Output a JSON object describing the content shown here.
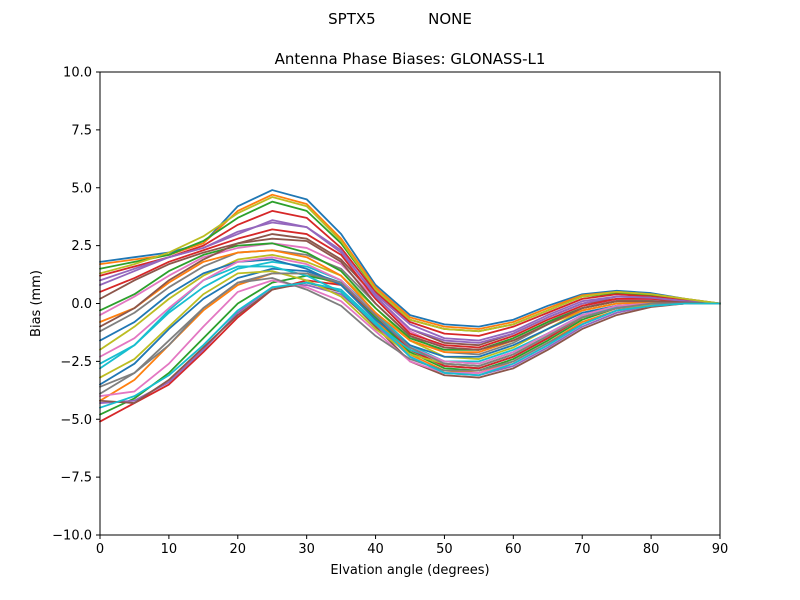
{
  "chart_data": {
    "type": "line",
    "suptitle": "SPTX5           NONE",
    "title": "Antenna Phase Biases: GLONASS-L1",
    "xlabel": "Elvation angle (degrees)",
    "ylabel": "Bias (mm)",
    "xlim": [
      0,
      90
    ],
    "ylim": [
      -10,
      10
    ],
    "xticks": [
      0,
      10,
      20,
      30,
      40,
      50,
      60,
      70,
      80,
      90
    ],
    "yticks": [
      -10.0,
      -7.5,
      -5.0,
      -2.5,
      0.0,
      2.5,
      5.0,
      7.5,
      10.0
    ],
    "xtick_labels": [
      "0",
      "10",
      "20",
      "30",
      "40",
      "50",
      "60",
      "70",
      "80",
      "90"
    ],
    "ytick_labels": [
      "−10.0",
      "−7.5",
      "−5.0",
      "−2.5",
      "0.0",
      "2.5",
      "5.0",
      "7.5",
      "10.0"
    ],
    "grid": false,
    "legend": false,
    "colors": [
      "#1f77b4",
      "#ff7f0e",
      "#2ca02c",
      "#d62728",
      "#9467bd",
      "#8c564b",
      "#e377c2",
      "#7f7f7f",
      "#bcbd22",
      "#17becf"
    ],
    "x": [
      0,
      5,
      10,
      15,
      20,
      25,
      30,
      35,
      40,
      45,
      50,
      55,
      60,
      65,
      70,
      75,
      80,
      85,
      90
    ],
    "series": [
      {
        "values": [
          1.8,
          2.0,
          2.2,
          2.6,
          4.2,
          4.9,
          4.5,
          3.0,
          0.8,
          -0.5,
          -0.9,
          -1.0,
          -0.7,
          -0.1,
          0.4,
          0.55,
          0.45,
          0.2,
          0.0
        ]
      },
      {
        "values": [
          1.7,
          1.9,
          2.1,
          2.6,
          4.0,
          4.7,
          4.3,
          2.8,
          0.7,
          -0.6,
          -1.0,
          -1.1,
          -0.8,
          -0.2,
          0.35,
          0.5,
          0.4,
          0.2,
          0.0
        ]
      },
      {
        "values": [
          1.5,
          1.8,
          2.1,
          2.7,
          3.7,
          4.4,
          4.0,
          2.6,
          0.6,
          -0.7,
          -1.1,
          -1.2,
          -0.9,
          -0.3,
          0.3,
          0.45,
          0.35,
          0.15,
          0.0
        ]
      },
      {
        "values": [
          1.2,
          1.6,
          2.0,
          2.5,
          3.4,
          4.0,
          3.7,
          2.4,
          0.5,
          -0.8,
          -1.3,
          -1.4,
          -1.0,
          -0.4,
          0.2,
          0.4,
          0.3,
          0.15,
          0.0
        ]
      },
      {
        "values": [
          0.8,
          1.4,
          2.0,
          2.4,
          3.0,
          3.6,
          3.3,
          2.2,
          0.4,
          -0.9,
          -1.5,
          -1.6,
          -1.2,
          -0.5,
          0.1,
          0.3,
          0.25,
          0.1,
          0.0
        ]
      },
      {
        "values": [
          0.2,
          1.0,
          1.7,
          2.2,
          2.6,
          3.0,
          2.8,
          1.9,
          0.3,
          -1.1,
          -1.7,
          -1.8,
          -1.3,
          -0.6,
          0.0,
          0.2,
          0.2,
          0.1,
          0.0
        ]
      },
      {
        "values": [
          -0.5,
          0.3,
          1.2,
          2.0,
          2.4,
          2.6,
          2.4,
          1.7,
          0.2,
          -1.2,
          -1.9,
          -2.0,
          -1.5,
          -0.8,
          -0.1,
          0.15,
          0.15,
          0.05,
          0.0
        ]
      },
      {
        "values": [
          -1.2,
          -0.4,
          0.7,
          1.6,
          2.2,
          2.3,
          2.1,
          1.5,
          0.0,
          -1.4,
          -2.1,
          -2.2,
          -1.7,
          -0.9,
          -0.2,
          0.1,
          0.1,
          0.05,
          0.0
        ]
      },
      {
        "values": [
          -2.0,
          -1.0,
          0.2,
          1.2,
          1.9,
          2.1,
          1.8,
          1.2,
          -0.2,
          -1.6,
          -2.3,
          -2.4,
          -1.9,
          -1.1,
          -0.3,
          0.0,
          0.05,
          0.0,
          0.0
        ]
      },
      {
        "values": [
          -2.8,
          -1.8,
          -0.4,
          0.7,
          1.5,
          1.8,
          1.6,
          1.0,
          -0.4,
          -1.8,
          -2.5,
          -2.6,
          -2.1,
          -1.3,
          -0.5,
          -0.1,
          0.0,
          0.0,
          0.0
        ]
      },
      {
        "values": [
          -3.5,
          -2.6,
          -1.1,
          0.2,
          1.1,
          1.5,
          1.4,
          0.9,
          -0.6,
          -2.0,
          -2.7,
          -2.8,
          -2.3,
          -1.5,
          -0.6,
          -0.2,
          -0.05,
          0.0,
          0.0
        ]
      },
      {
        "values": [
          -4.2,
          -3.3,
          -1.8,
          -0.3,
          0.8,
          1.3,
          1.3,
          0.8,
          -0.7,
          -2.2,
          -2.9,
          -3.0,
          -2.5,
          -1.7,
          -0.8,
          -0.3,
          -0.1,
          0.0,
          0.0
        ]
      },
      {
        "values": [
          -4.8,
          -4.1,
          -3.0,
          -1.5,
          0.0,
          0.9,
          1.2,
          0.9,
          -0.6,
          -2.1,
          -2.8,
          -2.9,
          -2.4,
          -1.6,
          -0.7,
          -0.2,
          -0.05,
          0.0,
          0.0
        ]
      },
      {
        "values": [
          -5.1,
          -4.3,
          -3.5,
          -2.1,
          -0.6,
          0.6,
          1.0,
          0.8,
          -0.5,
          -2.0,
          -2.7,
          -2.8,
          -2.3,
          -1.5,
          -0.6,
          -0.2,
          -0.05,
          0.0,
          0.0
        ]
      },
      {
        "values": [
          -4.3,
          -4.2,
          -3.4,
          -2.0,
          -0.4,
          0.7,
          0.8,
          0.4,
          -0.9,
          -2.3,
          -3.0,
          -3.1,
          -2.7,
          -1.9,
          -1.0,
          -0.4,
          -0.1,
          0.0,
          0.0
        ]
      },
      {
        "values": [
          -4.2,
          -4.3,
          -3.3,
          -1.9,
          -0.5,
          0.6,
          0.9,
          0.5,
          -1.0,
          -2.5,
          -3.1,
          -3.2,
          -2.8,
          -2.0,
          -1.1,
          -0.5,
          -0.15,
          0.0,
          0.0
        ]
      },
      {
        "values": [
          -4.0,
          -3.8,
          -2.6,
          -1.0,
          0.5,
          1.0,
          0.7,
          0.1,
          -1.2,
          -2.5,
          -3.0,
          -3.0,
          -2.6,
          -1.8,
          -0.9,
          -0.3,
          -0.1,
          0.0,
          0.0
        ]
      },
      {
        "values": [
          -3.6,
          -3.0,
          -1.8,
          -0.2,
          0.9,
          1.1,
          0.6,
          -0.1,
          -1.4,
          -2.4,
          -2.9,
          -2.9,
          -2.5,
          -1.7,
          -0.9,
          -0.3,
          -0.1,
          0.0,
          0.0
        ]
      },
      {
        "values": [
          -3.2,
          -2.4,
          -1.0,
          0.4,
          1.3,
          1.4,
          1.0,
          0.3,
          -1.1,
          -2.2,
          -2.6,
          -2.7,
          -2.2,
          -1.4,
          -0.6,
          -0.2,
          -0.05,
          0.0,
          0.0
        ]
      },
      {
        "values": [
          -2.6,
          -1.8,
          -0.3,
          1.0,
          1.6,
          1.6,
          1.2,
          0.5,
          -0.9,
          -2.0,
          -2.5,
          -2.5,
          -2.0,
          -1.3,
          -0.5,
          -0.15,
          0.0,
          0.0,
          0.0
        ]
      },
      {
        "values": [
          -1.6,
          -0.8,
          0.4,
          1.3,
          1.8,
          1.9,
          1.5,
          0.8,
          -0.7,
          -1.8,
          -2.3,
          -2.3,
          -1.8,
          -1.1,
          -0.4,
          -0.1,
          0.0,
          0.0,
          0.0
        ]
      },
      {
        "values": [
          -0.8,
          -0.2,
          0.9,
          1.8,
          2.2,
          2.3,
          2.0,
          1.2,
          -0.4,
          -1.6,
          -2.1,
          -2.1,
          -1.6,
          -0.9,
          -0.3,
          0.0,
          0.05,
          0.0,
          0.0
        ]
      },
      {
        "values": [
          -0.3,
          0.4,
          1.4,
          2.1,
          2.5,
          2.6,
          2.2,
          1.4,
          -0.2,
          -1.5,
          -2.0,
          -2.0,
          -1.5,
          -0.8,
          -0.2,
          0.1,
          0.1,
          0.05,
          0.0
        ]
      },
      {
        "values": [
          0.5,
          1.1,
          1.8,
          2.3,
          2.8,
          3.2,
          3.0,
          2.1,
          0.2,
          -1.3,
          -1.8,
          -1.9,
          -1.4,
          -0.7,
          -0.1,
          0.2,
          0.2,
          0.1,
          0.0
        ]
      },
      {
        "values": [
          1.0,
          1.5,
          2.0,
          2.4,
          3.1,
          3.5,
          3.3,
          2.3,
          0.3,
          -1.1,
          -1.6,
          -1.7,
          -1.3,
          -0.6,
          0.0,
          0.3,
          0.25,
          0.1,
          0.0
        ]
      },
      {
        "values": [
          -1.0,
          -0.2,
          1.0,
          1.9,
          2.6,
          2.8,
          2.7,
          1.8,
          0.0,
          -1.4,
          -1.9,
          -2.0,
          -1.6,
          -0.9,
          -0.2,
          0.1,
          0.1,
          0.05,
          0.0
        ]
      },
      {
        "values": [
          -2.3,
          -1.5,
          -0.2,
          1.0,
          1.8,
          2.0,
          1.7,
          1.0,
          -0.5,
          -1.9,
          -2.5,
          -2.6,
          -2.1,
          -1.3,
          -0.5,
          -0.1,
          0.0,
          0.0,
          0.0
        ]
      },
      {
        "values": [
          -3.9,
          -3.0,
          -1.6,
          -0.2,
          0.9,
          1.3,
          1.3,
          0.9,
          -0.5,
          -1.9,
          -2.6,
          -2.7,
          -2.2,
          -1.4,
          -0.6,
          -0.2,
          0.0,
          0.0,
          0.0
        ]
      },
      {
        "values": [
          1.3,
          1.7,
          2.2,
          2.9,
          3.9,
          4.6,
          4.2,
          2.7,
          0.6,
          -0.7,
          -1.1,
          -1.2,
          -0.9,
          -0.3,
          0.3,
          0.5,
          0.4,
          0.2,
          0.0
        ]
      },
      {
        "values": [
          -4.5,
          -4.0,
          -3.1,
          -1.8,
          -0.3,
          0.7,
          0.9,
          0.6,
          -0.8,
          -2.3,
          -3.0,
          -3.1,
          -2.6,
          -1.8,
          -0.9,
          -0.3,
          -0.1,
          0.0,
          0.0
        ]
      }
    ]
  }
}
